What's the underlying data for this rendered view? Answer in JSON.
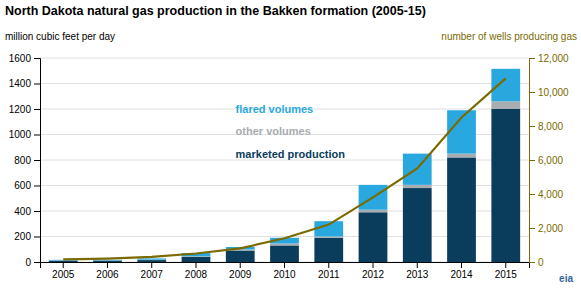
{
  "chart_data": {
    "type": "bar",
    "stacked": true,
    "title": "North Dakota natural gas production in the Bakken formation (2005-15)",
    "y_label": "million cubic feet per day",
    "y2_label": "number of wells producing gas",
    "categories": [
      "2005",
      "2006",
      "2007",
      "2008",
      "2009",
      "2010",
      "2011",
      "2012",
      "2013",
      "2014",
      "2015"
    ],
    "series": [
      {
        "name": "marketed production",
        "color": "#0a3d5c",
        "values": [
          10,
          10,
          15,
          40,
          90,
          130,
          190,
          390,
          580,
          820,
          1200
        ]
      },
      {
        "name": "other volumes",
        "color": "#a8adb2",
        "values": [
          2,
          2,
          3,
          5,
          8,
          15,
          10,
          20,
          25,
          30,
          60
        ]
      },
      {
        "name": "flared volumes",
        "color": "#29a8e0",
        "values": [
          5,
          5,
          10,
          25,
          20,
          45,
          120,
          195,
          245,
          340,
          255
        ]
      },
      {
        "type": "line",
        "axis": "y2",
        "color": "#7a6a00",
        "values": [
          150,
          200,
          300,
          500,
          800,
          1400,
          2200,
          3800,
          5500,
          8500,
          10800
        ]
      }
    ],
    "ylim": [
      0,
      1600
    ],
    "yticks": [
      0,
      200,
      400,
      600,
      800,
      1000,
      1200,
      1400,
      1600
    ],
    "y2lim": [
      0,
      12000
    ],
    "y2ticks": [
      0,
      {
        "value": 2000,
        "label": "2,000"
      },
      {
        "value": 4000,
        "label": "4,000"
      },
      {
        "value": 6000,
        "label": "6,000"
      },
      {
        "value": 8000,
        "label": "8,000"
      },
      {
        "value": 10000,
        "label": "10,000"
      },
      {
        "value": 12000,
        "label": "12,000"
      }
    ],
    "grid": true,
    "annotations": [
      "eia"
    ]
  }
}
